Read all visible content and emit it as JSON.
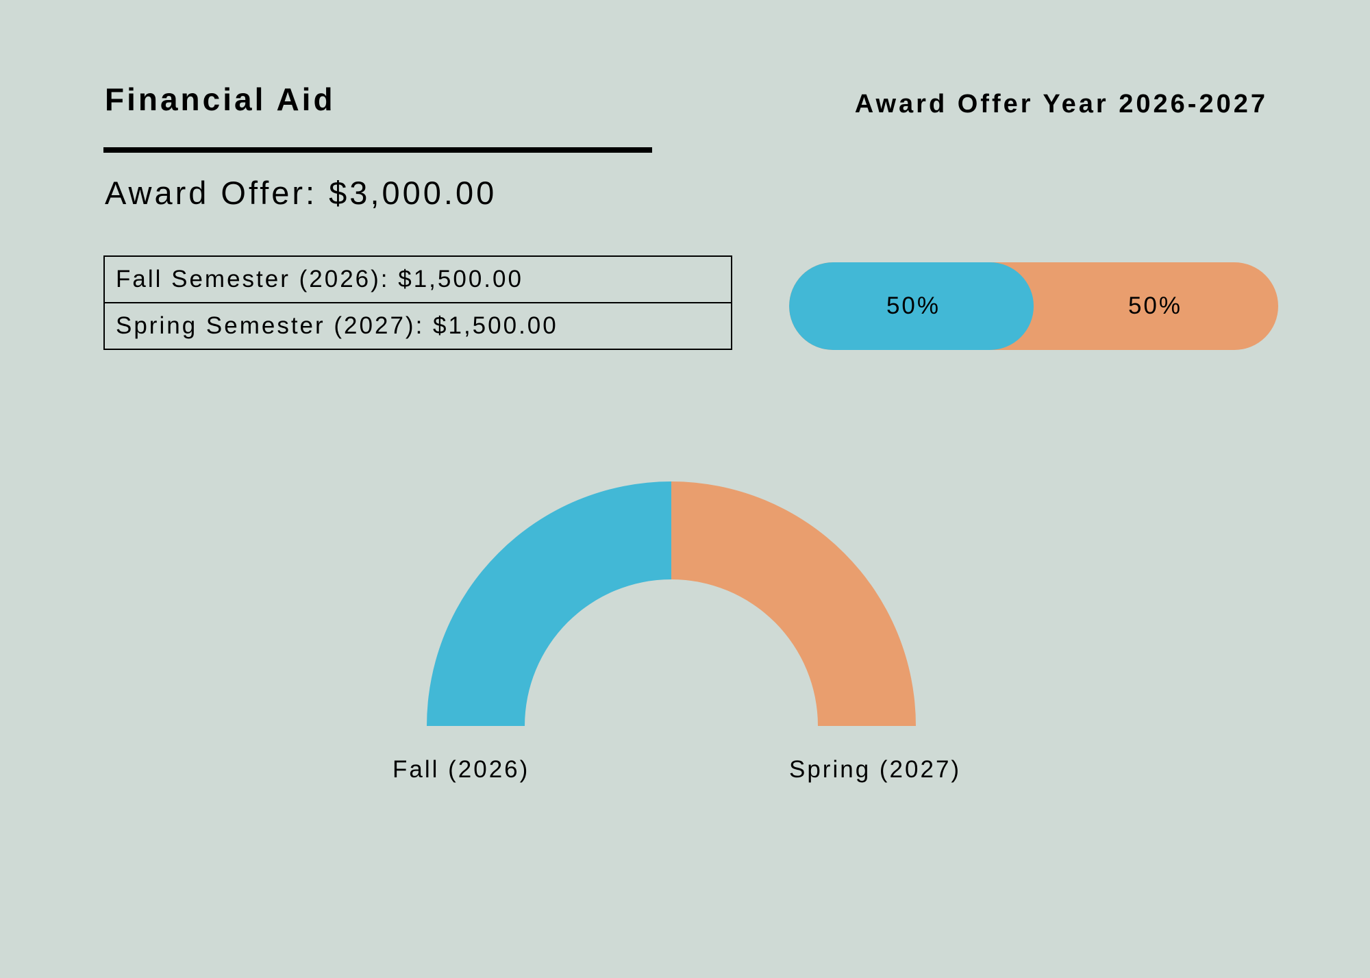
{
  "header": {
    "title": "Financial Aid",
    "year_label": "Award Offer Year 2026-2027"
  },
  "offer": {
    "total_label": "Award Offer: $3,000.00"
  },
  "breakdown": [
    {
      "label": "Fall Semester (2026): $1,500.00"
    },
    {
      "label": "Spring Semester (2027): $1,500.00"
    }
  ],
  "split_bar": {
    "segments": [
      {
        "label": "50%",
        "value": 50,
        "color": "#42b8d6"
      },
      {
        "label": "50%",
        "value": 50,
        "color": "#e99e6e"
      }
    ]
  },
  "colors": {
    "background": "#cfdad5",
    "fall": "#42b8d6",
    "spring": "#e99e6e"
  },
  "chart_data": {
    "type": "pie",
    "title": "",
    "categories": [
      "Fall (2026)",
      "Spring (2027)"
    ],
    "values": [
      1500,
      1500
    ],
    "colors": [
      "#42b8d6",
      "#e99e6e"
    ],
    "style": "half-donut"
  }
}
